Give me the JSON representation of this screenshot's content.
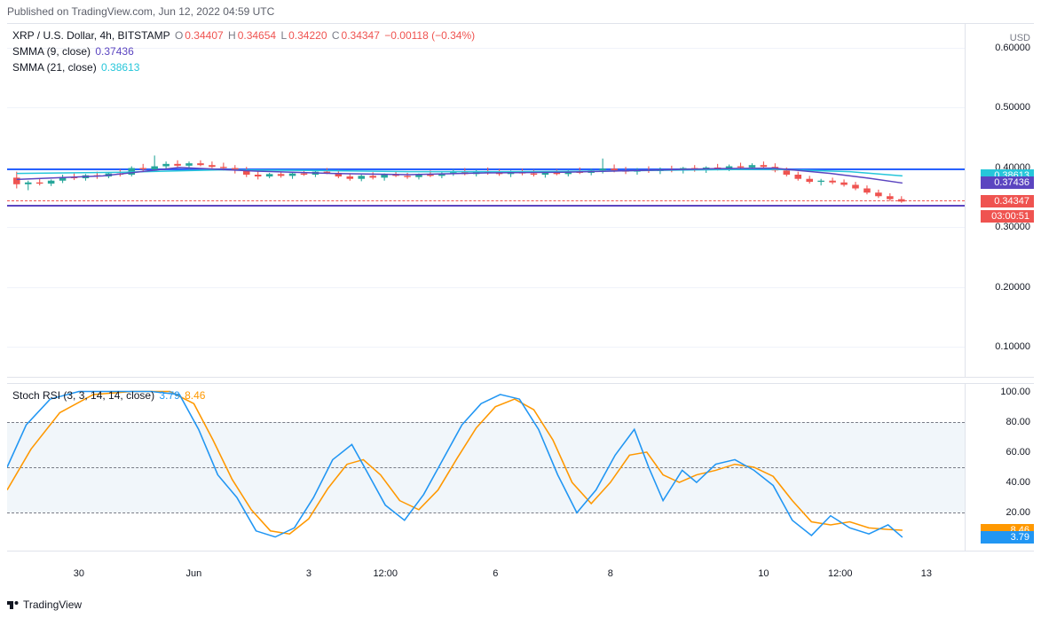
{
  "header": {
    "published_text": "Published on TradingView.com, Jun 12, 2022 04:59 UTC"
  },
  "footer": {
    "brand": "TradingView"
  },
  "price_pane": {
    "symbol_label": "XRP / U.S. Dollar, 4h, BITSTAMP",
    "ohlc": {
      "o_label": "O",
      "o_val": "0.34407",
      "h_label": "H",
      "h_val": "0.34654",
      "l_label": "L",
      "l_val": "0.34220",
      "c_label": "C",
      "c_val": "0.34347",
      "chg_val": "−0.00118 (−0.34%)"
    },
    "ohlc_color": "#ef5350",
    "smma9": {
      "label": "SMMA (9, close)",
      "val": "0.37436",
      "color": "#5b45c0"
    },
    "smma21": {
      "label": "SMMA (21, close)",
      "val": "0.38613",
      "color": "#26c6da"
    },
    "unit": "USD",
    "ymin": 0.05,
    "ymax": 0.64,
    "yticks": [
      0.1,
      0.2,
      0.3,
      0.4,
      0.5,
      0.6
    ],
    "ytick_labels": [
      "0.10000",
      "0.20000",
      "0.30000",
      "0.40000",
      "0.50000",
      "0.60000"
    ],
    "hlines": [
      {
        "y": 0.398,
        "color": "#2962ff",
        "w": 2
      },
      {
        "y": 0.338,
        "color": "#5b45c0",
        "w": 2
      },
      {
        "y": 0.345,
        "color": "#ef5350",
        "w": 1,
        "dash": true
      }
    ],
    "tags": [
      {
        "y": 0.38613,
        "text": "0.38613",
        "bg": "#26c6da"
      },
      {
        "y": 0.37436,
        "text": "0.37436",
        "bg": "#5b45c0"
      },
      {
        "y": 0.34347,
        "text": "0.34347",
        "bg": "#ef5350"
      },
      {
        "y": 0.318,
        "text": "03:00:51",
        "bg": "#ef5350"
      }
    ],
    "candles": [
      {
        "x": 0.01,
        "o": 0.383,
        "h": 0.393,
        "l": 0.365,
        "c": 0.372,
        "u": 0
      },
      {
        "x": 0.022,
        "o": 0.372,
        "h": 0.378,
        "l": 0.362,
        "c": 0.375,
        "u": 1
      },
      {
        "x": 0.034,
        "o": 0.375,
        "h": 0.381,
        "l": 0.37,
        "c": 0.373,
        "u": 0
      },
      {
        "x": 0.046,
        "o": 0.373,
        "h": 0.38,
        "l": 0.369,
        "c": 0.378,
        "u": 1
      },
      {
        "x": 0.058,
        "o": 0.378,
        "h": 0.388,
        "l": 0.374,
        "c": 0.384,
        "u": 1
      },
      {
        "x": 0.07,
        "o": 0.384,
        "h": 0.39,
        "l": 0.379,
        "c": 0.382,
        "u": 0
      },
      {
        "x": 0.082,
        "o": 0.382,
        "h": 0.389,
        "l": 0.378,
        "c": 0.387,
        "u": 1
      },
      {
        "x": 0.094,
        "o": 0.387,
        "h": 0.393,
        "l": 0.381,
        "c": 0.385,
        "u": 0
      },
      {
        "x": 0.106,
        "o": 0.385,
        "h": 0.392,
        "l": 0.382,
        "c": 0.39,
        "u": 1
      },
      {
        "x": 0.118,
        "o": 0.39,
        "h": 0.397,
        "l": 0.385,
        "c": 0.388,
        "u": 0
      },
      {
        "x": 0.13,
        "o": 0.388,
        "h": 0.402,
        "l": 0.385,
        "c": 0.399,
        "u": 1
      },
      {
        "x": 0.142,
        "o": 0.399,
        "h": 0.406,
        "l": 0.394,
        "c": 0.397,
        "u": 0
      },
      {
        "x": 0.154,
        "o": 0.397,
        "h": 0.42,
        "l": 0.393,
        "c": 0.402,
        "u": 1
      },
      {
        "x": 0.166,
        "o": 0.402,
        "h": 0.41,
        "l": 0.398,
        "c": 0.406,
        "u": 1
      },
      {
        "x": 0.178,
        "o": 0.406,
        "h": 0.412,
        "l": 0.4,
        "c": 0.403,
        "u": 0
      },
      {
        "x": 0.19,
        "o": 0.403,
        "h": 0.41,
        "l": 0.397,
        "c": 0.407,
        "u": 1
      },
      {
        "x": 0.202,
        "o": 0.407,
        "h": 0.412,
        "l": 0.402,
        "c": 0.404,
        "u": 0
      },
      {
        "x": 0.214,
        "o": 0.404,
        "h": 0.41,
        "l": 0.399,
        "c": 0.401,
        "u": 0
      },
      {
        "x": 0.226,
        "o": 0.401,
        "h": 0.408,
        "l": 0.395,
        "c": 0.399,
        "u": 0
      },
      {
        "x": 0.238,
        "o": 0.399,
        "h": 0.404,
        "l": 0.39,
        "c": 0.395,
        "u": 0
      },
      {
        "x": 0.25,
        "o": 0.395,
        "h": 0.401,
        "l": 0.384,
        "c": 0.388,
        "u": 0
      },
      {
        "x": 0.262,
        "o": 0.388,
        "h": 0.394,
        "l": 0.38,
        "c": 0.385,
        "u": 0
      },
      {
        "x": 0.274,
        "o": 0.385,
        "h": 0.391,
        "l": 0.382,
        "c": 0.389,
        "u": 1
      },
      {
        "x": 0.286,
        "o": 0.389,
        "h": 0.393,
        "l": 0.383,
        "c": 0.386,
        "u": 0
      },
      {
        "x": 0.298,
        "o": 0.386,
        "h": 0.392,
        "l": 0.381,
        "c": 0.39,
        "u": 1
      },
      {
        "x": 0.31,
        "o": 0.39,
        "h": 0.396,
        "l": 0.386,
        "c": 0.388,
        "u": 0
      },
      {
        "x": 0.322,
        "o": 0.388,
        "h": 0.395,
        "l": 0.384,
        "c": 0.393,
        "u": 1
      },
      {
        "x": 0.334,
        "o": 0.393,
        "h": 0.399,
        "l": 0.389,
        "c": 0.391,
        "u": 0
      },
      {
        "x": 0.346,
        "o": 0.391,
        "h": 0.396,
        "l": 0.382,
        "c": 0.385,
        "u": 0
      },
      {
        "x": 0.358,
        "o": 0.385,
        "h": 0.39,
        "l": 0.378,
        "c": 0.381,
        "u": 0
      },
      {
        "x": 0.37,
        "o": 0.381,
        "h": 0.388,
        "l": 0.377,
        "c": 0.386,
        "u": 1
      },
      {
        "x": 0.382,
        "o": 0.386,
        "h": 0.392,
        "l": 0.38,
        "c": 0.383,
        "u": 0
      },
      {
        "x": 0.394,
        "o": 0.383,
        "h": 0.39,
        "l": 0.378,
        "c": 0.388,
        "u": 1
      },
      {
        "x": 0.406,
        "o": 0.388,
        "h": 0.394,
        "l": 0.384,
        "c": 0.386,
        "u": 0
      },
      {
        "x": 0.418,
        "o": 0.386,
        "h": 0.391,
        "l": 0.381,
        "c": 0.384,
        "u": 0
      },
      {
        "x": 0.43,
        "o": 0.384,
        "h": 0.39,
        "l": 0.38,
        "c": 0.388,
        "u": 1
      },
      {
        "x": 0.442,
        "o": 0.388,
        "h": 0.395,
        "l": 0.384,
        "c": 0.386,
        "u": 0
      },
      {
        "x": 0.454,
        "o": 0.386,
        "h": 0.392,
        "l": 0.382,
        "c": 0.39,
        "u": 1
      },
      {
        "x": 0.466,
        "o": 0.39,
        "h": 0.397,
        "l": 0.386,
        "c": 0.392,
        "u": 1
      },
      {
        "x": 0.478,
        "o": 0.392,
        "h": 0.399,
        "l": 0.387,
        "c": 0.389,
        "u": 0
      },
      {
        "x": 0.49,
        "o": 0.389,
        "h": 0.396,
        "l": 0.385,
        "c": 0.394,
        "u": 1
      },
      {
        "x": 0.502,
        "o": 0.394,
        "h": 0.4,
        "l": 0.388,
        "c": 0.391,
        "u": 0
      },
      {
        "x": 0.514,
        "o": 0.391,
        "h": 0.397,
        "l": 0.386,
        "c": 0.389,
        "u": 0
      },
      {
        "x": 0.526,
        "o": 0.389,
        "h": 0.395,
        "l": 0.384,
        "c": 0.393,
        "u": 1
      },
      {
        "x": 0.538,
        "o": 0.393,
        "h": 0.398,
        "l": 0.387,
        "c": 0.39,
        "u": 0
      },
      {
        "x": 0.55,
        "o": 0.39,
        "h": 0.396,
        "l": 0.385,
        "c": 0.388,
        "u": 0
      },
      {
        "x": 0.562,
        "o": 0.388,
        "h": 0.394,
        "l": 0.383,
        "c": 0.391,
        "u": 1
      },
      {
        "x": 0.574,
        "o": 0.391,
        "h": 0.397,
        "l": 0.387,
        "c": 0.389,
        "u": 0
      },
      {
        "x": 0.586,
        "o": 0.389,
        "h": 0.396,
        "l": 0.385,
        "c": 0.393,
        "u": 1
      },
      {
        "x": 0.598,
        "o": 0.393,
        "h": 0.4,
        "l": 0.389,
        "c": 0.391,
        "u": 0
      },
      {
        "x": 0.61,
        "o": 0.391,
        "h": 0.398,
        "l": 0.387,
        "c": 0.395,
        "u": 1
      },
      {
        "x": 0.622,
        "o": 0.395,
        "h": 0.415,
        "l": 0.39,
        "c": 0.398,
        "u": 1
      },
      {
        "x": 0.634,
        "o": 0.398,
        "h": 0.405,
        "l": 0.392,
        "c": 0.395,
        "u": 0
      },
      {
        "x": 0.646,
        "o": 0.395,
        "h": 0.401,
        "l": 0.389,
        "c": 0.393,
        "u": 0
      },
      {
        "x": 0.658,
        "o": 0.393,
        "h": 0.399,
        "l": 0.388,
        "c": 0.396,
        "u": 1
      },
      {
        "x": 0.67,
        "o": 0.396,
        "h": 0.402,
        "l": 0.391,
        "c": 0.394,
        "u": 0
      },
      {
        "x": 0.682,
        "o": 0.394,
        "h": 0.4,
        "l": 0.389,
        "c": 0.397,
        "u": 1
      },
      {
        "x": 0.694,
        "o": 0.397,
        "h": 0.403,
        "l": 0.392,
        "c": 0.395,
        "u": 0
      },
      {
        "x": 0.706,
        "o": 0.395,
        "h": 0.401,
        "l": 0.39,
        "c": 0.399,
        "u": 1
      },
      {
        "x": 0.718,
        "o": 0.399,
        "h": 0.404,
        "l": 0.393,
        "c": 0.396,
        "u": 0
      },
      {
        "x": 0.73,
        "o": 0.396,
        "h": 0.402,
        "l": 0.391,
        "c": 0.4,
        "u": 1
      },
      {
        "x": 0.742,
        "o": 0.4,
        "h": 0.406,
        "l": 0.395,
        "c": 0.398,
        "u": 0
      },
      {
        "x": 0.754,
        "o": 0.398,
        "h": 0.405,
        "l": 0.394,
        "c": 0.402,
        "u": 1
      },
      {
        "x": 0.766,
        "o": 0.402,
        "h": 0.408,
        "l": 0.397,
        "c": 0.4,
        "u": 0
      },
      {
        "x": 0.778,
        "o": 0.4,
        "h": 0.407,
        "l": 0.396,
        "c": 0.404,
        "u": 1
      },
      {
        "x": 0.79,
        "o": 0.404,
        "h": 0.41,
        "l": 0.398,
        "c": 0.401,
        "u": 0
      },
      {
        "x": 0.802,
        "o": 0.401,
        "h": 0.407,
        "l": 0.392,
        "c": 0.395,
        "u": 0
      },
      {
        "x": 0.814,
        "o": 0.395,
        "h": 0.4,
        "l": 0.385,
        "c": 0.388,
        "u": 0
      },
      {
        "x": 0.826,
        "o": 0.388,
        "h": 0.393,
        "l": 0.378,
        "c": 0.381,
        "u": 0
      },
      {
        "x": 0.838,
        "o": 0.381,
        "h": 0.386,
        "l": 0.373,
        "c": 0.376,
        "u": 0
      },
      {
        "x": 0.85,
        "o": 0.376,
        "h": 0.381,
        "l": 0.37,
        "c": 0.378,
        "u": 1
      },
      {
        "x": 0.862,
        "o": 0.378,
        "h": 0.383,
        "l": 0.372,
        "c": 0.375,
        "u": 0
      },
      {
        "x": 0.874,
        "o": 0.375,
        "h": 0.38,
        "l": 0.368,
        "c": 0.371,
        "u": 0
      },
      {
        "x": 0.886,
        "o": 0.371,
        "h": 0.376,
        "l": 0.362,
        "c": 0.365,
        "u": 0
      },
      {
        "x": 0.898,
        "o": 0.365,
        "h": 0.37,
        "l": 0.355,
        "c": 0.358,
        "u": 0
      },
      {
        "x": 0.91,
        "o": 0.358,
        "h": 0.363,
        "l": 0.349,
        "c": 0.352,
        "u": 0
      },
      {
        "x": 0.922,
        "o": 0.352,
        "h": 0.357,
        "l": 0.344,
        "c": 0.347,
        "u": 0
      },
      {
        "x": 0.934,
        "o": 0.347,
        "h": 0.352,
        "l": 0.341,
        "c": 0.343,
        "u": 0
      }
    ],
    "smma9_line": [
      {
        "x": 0.01,
        "y": 0.38
      },
      {
        "x": 0.1,
        "y": 0.386
      },
      {
        "x": 0.18,
        "y": 0.4
      },
      {
        "x": 0.26,
        "y": 0.394
      },
      {
        "x": 0.34,
        "y": 0.39
      },
      {
        "x": 0.42,
        "y": 0.388
      },
      {
        "x": 0.5,
        "y": 0.391
      },
      {
        "x": 0.58,
        "y": 0.392
      },
      {
        "x": 0.66,
        "y": 0.395
      },
      {
        "x": 0.74,
        "y": 0.398
      },
      {
        "x": 0.8,
        "y": 0.399
      },
      {
        "x": 0.86,
        "y": 0.39
      },
      {
        "x": 0.9,
        "y": 0.382
      },
      {
        "x": 0.935,
        "y": 0.374
      }
    ],
    "smma21_line": [
      {
        "x": 0.01,
        "y": 0.39
      },
      {
        "x": 0.12,
        "y": 0.392
      },
      {
        "x": 0.22,
        "y": 0.396
      },
      {
        "x": 0.32,
        "y": 0.395
      },
      {
        "x": 0.42,
        "y": 0.393
      },
      {
        "x": 0.52,
        "y": 0.393
      },
      {
        "x": 0.62,
        "y": 0.394
      },
      {
        "x": 0.72,
        "y": 0.396
      },
      {
        "x": 0.8,
        "y": 0.397
      },
      {
        "x": 0.88,
        "y": 0.393
      },
      {
        "x": 0.935,
        "y": 0.386
      }
    ],
    "line_colors": {
      "smma9": "#5b45c0",
      "smma21": "#26c6da"
    }
  },
  "osc_pane": {
    "label": "Stoch RSI (3, 3, 14, 14, close)",
    "k_val": "3.79",
    "k_color": "#2196f3",
    "d_val": "8.46",
    "d_color": "#ff9800",
    "ymin": -5,
    "ymax": 105,
    "yticks": [
      20,
      40,
      60,
      80,
      100
    ],
    "ytick_labels": [
      "20.00",
      "40.00",
      "60.00",
      "80.00",
      "100.00"
    ],
    "band_lo": 20,
    "band_hi": 80,
    "midline": 50,
    "k_line": [
      {
        "x": 0.0,
        "y": 50
      },
      {
        "x": 0.02,
        "y": 78
      },
      {
        "x": 0.045,
        "y": 95
      },
      {
        "x": 0.075,
        "y": 100
      },
      {
        "x": 0.11,
        "y": 100
      },
      {
        "x": 0.15,
        "y": 100
      },
      {
        "x": 0.18,
        "y": 98
      },
      {
        "x": 0.2,
        "y": 75
      },
      {
        "x": 0.22,
        "y": 45
      },
      {
        "x": 0.24,
        "y": 30
      },
      {
        "x": 0.26,
        "y": 8
      },
      {
        "x": 0.28,
        "y": 4
      },
      {
        "x": 0.3,
        "y": 10
      },
      {
        "x": 0.32,
        "y": 30
      },
      {
        "x": 0.34,
        "y": 55
      },
      {
        "x": 0.36,
        "y": 65
      },
      {
        "x": 0.375,
        "y": 48
      },
      {
        "x": 0.395,
        "y": 25
      },
      {
        "x": 0.415,
        "y": 15
      },
      {
        "x": 0.435,
        "y": 32
      },
      {
        "x": 0.455,
        "y": 55
      },
      {
        "x": 0.475,
        "y": 78
      },
      {
        "x": 0.495,
        "y": 92
      },
      {
        "x": 0.515,
        "y": 98
      },
      {
        "x": 0.535,
        "y": 95
      },
      {
        "x": 0.555,
        "y": 75
      },
      {
        "x": 0.575,
        "y": 45
      },
      {
        "x": 0.595,
        "y": 20
      },
      {
        "x": 0.615,
        "y": 35
      },
      {
        "x": 0.635,
        "y": 58
      },
      {
        "x": 0.655,
        "y": 75
      },
      {
        "x": 0.67,
        "y": 50
      },
      {
        "x": 0.685,
        "y": 28
      },
      {
        "x": 0.705,
        "y": 48
      },
      {
        "x": 0.72,
        "y": 40
      },
      {
        "x": 0.74,
        "y": 52
      },
      {
        "x": 0.76,
        "y": 55
      },
      {
        "x": 0.78,
        "y": 48
      },
      {
        "x": 0.8,
        "y": 38
      },
      {
        "x": 0.82,
        "y": 15
      },
      {
        "x": 0.84,
        "y": 5
      },
      {
        "x": 0.86,
        "y": 18
      },
      {
        "x": 0.88,
        "y": 10
      },
      {
        "x": 0.9,
        "y": 6
      },
      {
        "x": 0.92,
        "y": 12
      },
      {
        "x": 0.935,
        "y": 3.79
      }
    ],
    "d_line": [
      {
        "x": 0.0,
        "y": 35
      },
      {
        "x": 0.025,
        "y": 62
      },
      {
        "x": 0.055,
        "y": 86
      },
      {
        "x": 0.09,
        "y": 98
      },
      {
        "x": 0.13,
        "y": 100
      },
      {
        "x": 0.17,
        "y": 100
      },
      {
        "x": 0.195,
        "y": 92
      },
      {
        "x": 0.215,
        "y": 68
      },
      {
        "x": 0.235,
        "y": 42
      },
      {
        "x": 0.255,
        "y": 22
      },
      {
        "x": 0.275,
        "y": 8
      },
      {
        "x": 0.295,
        "y": 6
      },
      {
        "x": 0.315,
        "y": 16
      },
      {
        "x": 0.335,
        "y": 36
      },
      {
        "x": 0.355,
        "y": 52
      },
      {
        "x": 0.372,
        "y": 55
      },
      {
        "x": 0.39,
        "y": 45
      },
      {
        "x": 0.41,
        "y": 28
      },
      {
        "x": 0.43,
        "y": 22
      },
      {
        "x": 0.45,
        "y": 35
      },
      {
        "x": 0.47,
        "y": 56
      },
      {
        "x": 0.49,
        "y": 76
      },
      {
        "x": 0.51,
        "y": 90
      },
      {
        "x": 0.53,
        "y": 95
      },
      {
        "x": 0.55,
        "y": 88
      },
      {
        "x": 0.57,
        "y": 68
      },
      {
        "x": 0.59,
        "y": 40
      },
      {
        "x": 0.61,
        "y": 26
      },
      {
        "x": 0.63,
        "y": 40
      },
      {
        "x": 0.65,
        "y": 58
      },
      {
        "x": 0.668,
        "y": 60
      },
      {
        "x": 0.685,
        "y": 45
      },
      {
        "x": 0.702,
        "y": 40
      },
      {
        "x": 0.72,
        "y": 45
      },
      {
        "x": 0.74,
        "y": 48
      },
      {
        "x": 0.76,
        "y": 52
      },
      {
        "x": 0.78,
        "y": 50
      },
      {
        "x": 0.8,
        "y": 44
      },
      {
        "x": 0.82,
        "y": 28
      },
      {
        "x": 0.84,
        "y": 14
      },
      {
        "x": 0.86,
        "y": 12
      },
      {
        "x": 0.88,
        "y": 14
      },
      {
        "x": 0.9,
        "y": 10
      },
      {
        "x": 0.92,
        "y": 9
      },
      {
        "x": 0.935,
        "y": 8.46
      }
    ],
    "tags": [
      {
        "y": 8.46,
        "text": "8.46",
        "bg": "#ff9800"
      },
      {
        "y": 3.79,
        "text": "3.79",
        "bg": "#2196f3"
      }
    ]
  },
  "xaxis": {
    "ticks": [
      {
        "x": 0.075,
        "label": "30"
      },
      {
        "x": 0.195,
        "label": "Jun"
      },
      {
        "x": 0.315,
        "label": "3"
      },
      {
        "x": 0.395,
        "label": "12:00"
      },
      {
        "x": 0.51,
        "label": "6"
      },
      {
        "x": 0.63,
        "label": "8"
      },
      {
        "x": 0.79,
        "label": "10"
      },
      {
        "x": 0.87,
        "label": "12:00"
      },
      {
        "x": 0.96,
        "label": "13"
      }
    ]
  },
  "colors": {
    "up": "#26a69a",
    "down": "#ef5350"
  }
}
